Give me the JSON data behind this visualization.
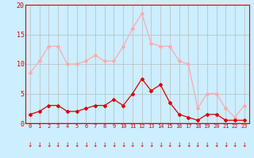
{
  "x": [
    0,
    1,
    2,
    3,
    4,
    5,
    6,
    7,
    8,
    9,
    10,
    11,
    12,
    13,
    14,
    15,
    16,
    17,
    18,
    19,
    20,
    21,
    22,
    23
  ],
  "wind_avg": [
    1.5,
    2.0,
    3.0,
    3.0,
    2.0,
    2.0,
    2.5,
    3.0,
    3.0,
    4.0,
    3.0,
    5.0,
    7.5,
    5.5,
    6.5,
    3.5,
    1.5,
    1.0,
    0.5,
    1.5,
    1.5,
    0.5,
    0.5,
    0.5
  ],
  "wind_gust": [
    8.5,
    10.5,
    13.0,
    13.0,
    10.0,
    10.0,
    10.5,
    11.5,
    10.5,
    10.5,
    13.0,
    16.0,
    18.5,
    13.5,
    13.0,
    13.0,
    10.5,
    10.0,
    2.5,
    5.0,
    5.0,
    2.5,
    1.0,
    3.0
  ],
  "avg_color": "#dd0000",
  "gust_color": "#ffaaaa",
  "bg_color": "#cceeff",
  "grid_color": "#bbbbbb",
  "ylabel_ticks": [
    0,
    5,
    10,
    15,
    20
  ],
  "ylim": [
    0,
    20
  ],
  "xlim": [
    -0.5,
    23.5
  ]
}
